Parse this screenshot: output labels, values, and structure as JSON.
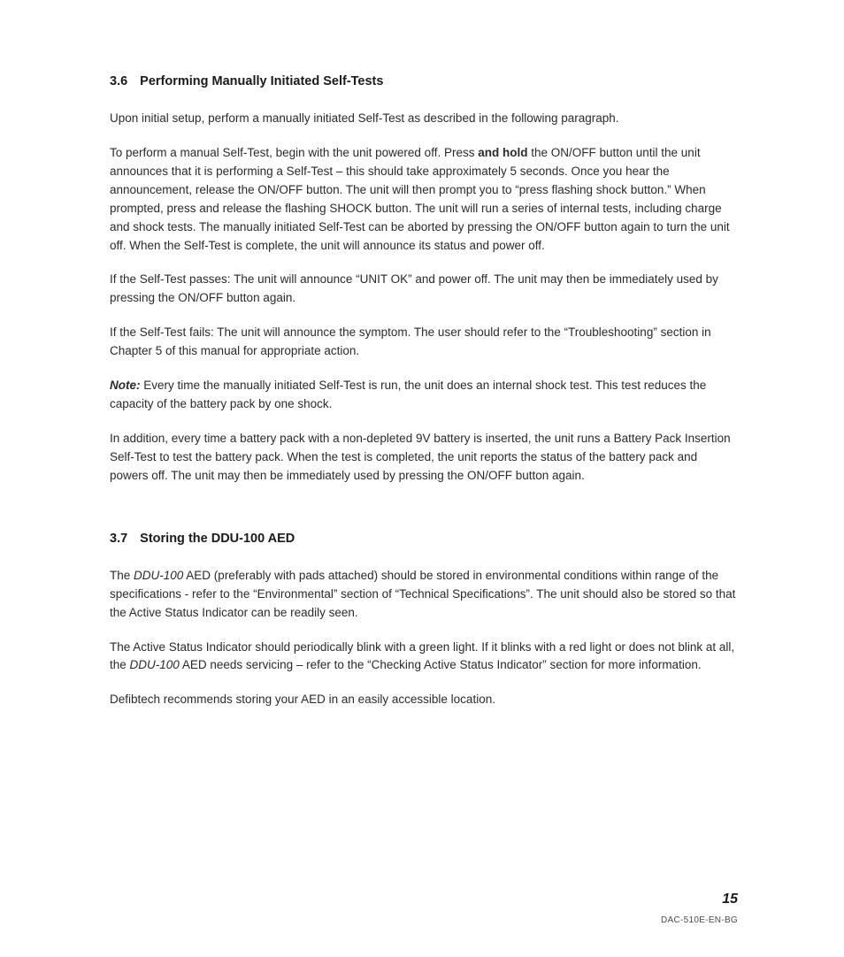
{
  "s36": {
    "num": "3.6",
    "title": "Performing Manually Initiated Self-Tests",
    "p1": "Upon initial setup, perform a manually initiated Self-Test as described in the following paragraph.",
    "p2a": "To perform a manual Self-Test, begin with the unit powered off. Press ",
    "p2bold": "and hold",
    "p2b": " the ON/OFF button until the unit announces that it is performing a Self-Test – this should take approximately 5 seconds. Once you hear the announcement, release the ON/OFF button. The unit will then prompt you to “press flashing shock button.” When prompted, press and release the flashing SHOCK button. The unit will run a series of internal tests, including charge and shock tests. The manually initiated Self-Test can be aborted by pressing the ON/OFF button again to turn the unit off. When the Self-Test is complete, the unit will announce its status and power off.",
    "p3": "If the Self-Test passes: The unit will announce “UNIT OK” and power off. The unit may then be immediately used by pressing the ON/OFF button again.",
    "p4": "If the Self-Test fails: The unit will announce the symptom. The user should refer to the “Troubleshooting” section in Chapter 5 of this manual for appropriate action.",
    "noteLabel": "Note:",
    "p5": " Every time the manually initiated Self-Test is run, the unit does an internal shock test. This test reduces the capacity of the battery pack by one shock.",
    "p6": "In addition, every time a battery pack with a non-depleted 9V battery is inserted, the unit runs a Battery Pack Insertion Self-Test to test the battery pack.  When the test is completed, the unit reports the status of the battery pack and powers off.  The unit may then be immediately used by pressing the ON/OFF button again."
  },
  "s37": {
    "num": "3.7",
    "title": "Storing the DDU-100 AED",
    "p1a": "The ",
    "p1model": "DDU-100",
    "p1b": " AED (preferably with pads attached) should be stored in environmental conditions within range of the specifications - refer to the “Environmental” section of “Technical Specifications”.  The unit should also be stored so that the Active Status Indicator can be readily seen.",
    "p2a": "The Active Status Indicator should periodically blink with a green light.  If it blinks with a red light or does not blink at all, the ",
    "p2model": "DDU-100",
    "p2b": " AED needs servicing – refer to the “Checking Active Status Indicator” section for more information.",
    "p3": "Defibtech recommends storing your AED in an easily accessible location."
  },
  "pageNumber": "15",
  "footerCode": "DAC-510E-EN-BG"
}
